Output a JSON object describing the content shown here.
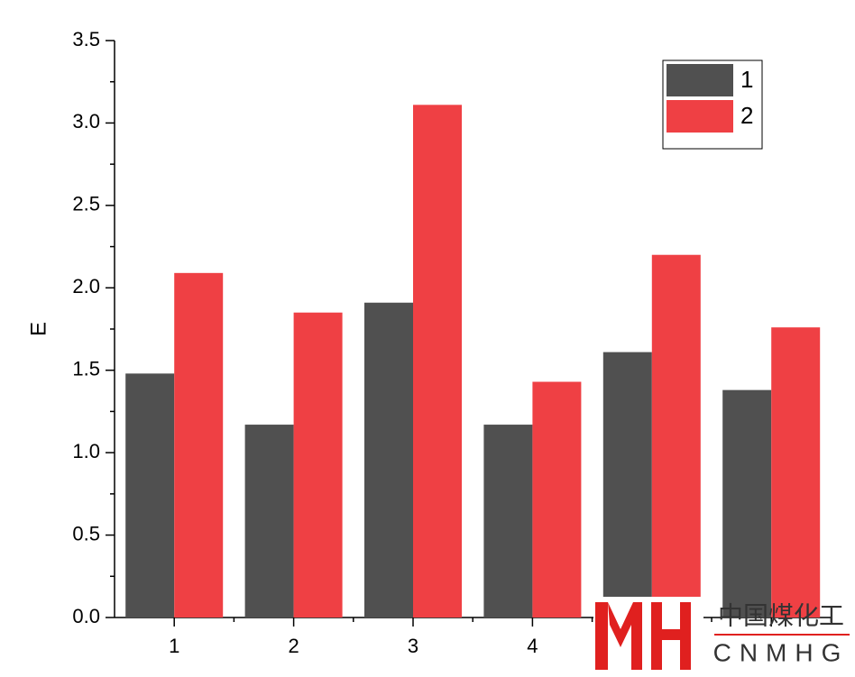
{
  "chart_data": {
    "type": "bar",
    "y_label": "E",
    "categories": [
      "1",
      "2",
      "3",
      "4",
      null,
      null
    ],
    "series": [
      {
        "name": "1",
        "color": "#505050",
        "values": [
          1.48,
          1.17,
          1.91,
          1.17,
          1.61,
          1.38
        ]
      },
      {
        "name": "2",
        "color": "#ef4044",
        "values": [
          2.09,
          1.85,
          3.11,
          1.43,
          2.2,
          1.76
        ]
      }
    ],
    "ylim": [
      0,
      3.5
    ],
    "yticks": [
      {
        "value": 0,
        "label": "0.0"
      },
      0.5,
      {
        "value": 1,
        "label": "1.0"
      },
      1.5,
      {
        "value": 2,
        "label": "2.0"
      },
      2.5,
      {
        "value": 3,
        "label": "3.0"
      },
      3.5
    ],
    "grid": false,
    "legend": "top-right"
  },
  "watermark": {
    "text": "中国煤化工",
    "subtext": "CNMHG"
  }
}
